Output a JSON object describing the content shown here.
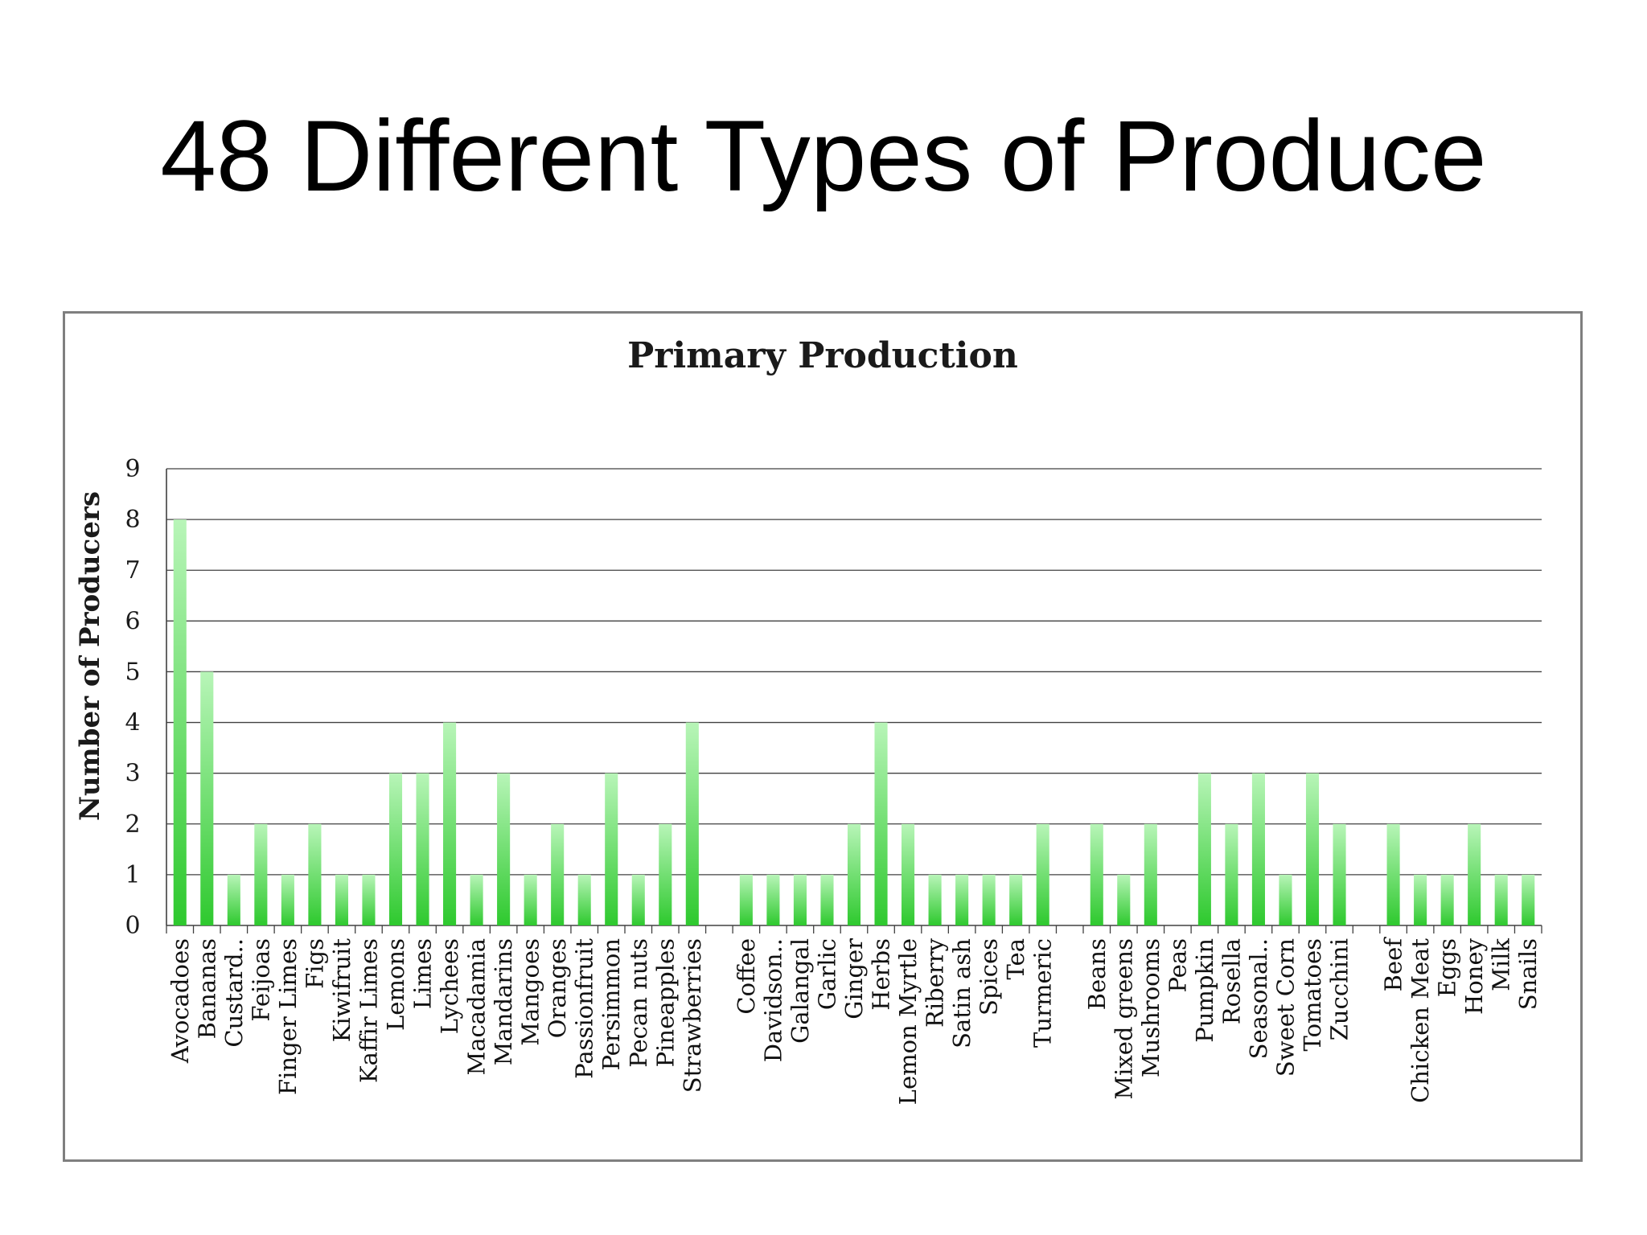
{
  "slide": {
    "title": "48 Different Types of Produce"
  },
  "colors": {
    "bar_bottom": "#2ec92e",
    "bar_top": "#b8f5b8",
    "grid": "#404040",
    "frame": "#7f7f7f"
  },
  "chart_data": {
    "type": "bar",
    "title": "Primary Production",
    "xlabel": "",
    "ylabel": "Number of Producers",
    "ylim": [
      0,
      9
    ],
    "yticks": [
      0,
      1,
      2,
      3,
      4,
      5,
      6,
      7,
      8,
      9
    ],
    "grid": true,
    "legend": "none",
    "groups": [
      {
        "categories": [
          "Avocadoes",
          "Bananas",
          "Custard..",
          "Feijoas",
          "Finger Limes",
          "Figs",
          "Kiwifruit",
          "Kaffir Limes",
          "Lemons",
          "Limes",
          "Lychees",
          "Macadamia",
          "Mandarins",
          "Mangoes",
          "Oranges",
          "Passionfruit",
          "Persimmon",
          "Pecan nuts",
          "Pineapples",
          "Strawberries"
        ],
        "values": [
          8,
          5,
          1,
          2,
          1,
          2,
          1,
          1,
          3,
          3,
          4,
          1,
          3,
          1,
          2,
          1,
          3,
          1,
          2,
          4
        ]
      },
      {
        "categories": [
          "Coffee",
          "Davidson..",
          "Galangal",
          "Garlic",
          "Ginger",
          "Herbs",
          "Lemon Myrtle",
          "Riberry",
          "Satin ash",
          "Spices",
          "Tea",
          "Turmeric"
        ],
        "values": [
          1,
          1,
          1,
          1,
          2,
          4,
          2,
          1,
          1,
          1,
          1,
          2
        ]
      },
      {
        "categories": [
          "Beans",
          "Mixed greens",
          "Mushrooms",
          "Peas",
          "Pumpkin",
          "Rosella",
          "Seasonal..",
          "Sweet Corn",
          "Tomatoes",
          "Zucchini"
        ],
        "values": [
          2,
          1,
          2,
          0,
          3,
          2,
          3,
          1,
          3,
          2
        ]
      },
      {
        "categories": [
          "Beef",
          "Chicken Meat",
          "Eggs",
          "Honey",
          "Milk",
          "Snails"
        ],
        "values": [
          2,
          1,
          1,
          2,
          1,
          1
        ]
      }
    ]
  }
}
